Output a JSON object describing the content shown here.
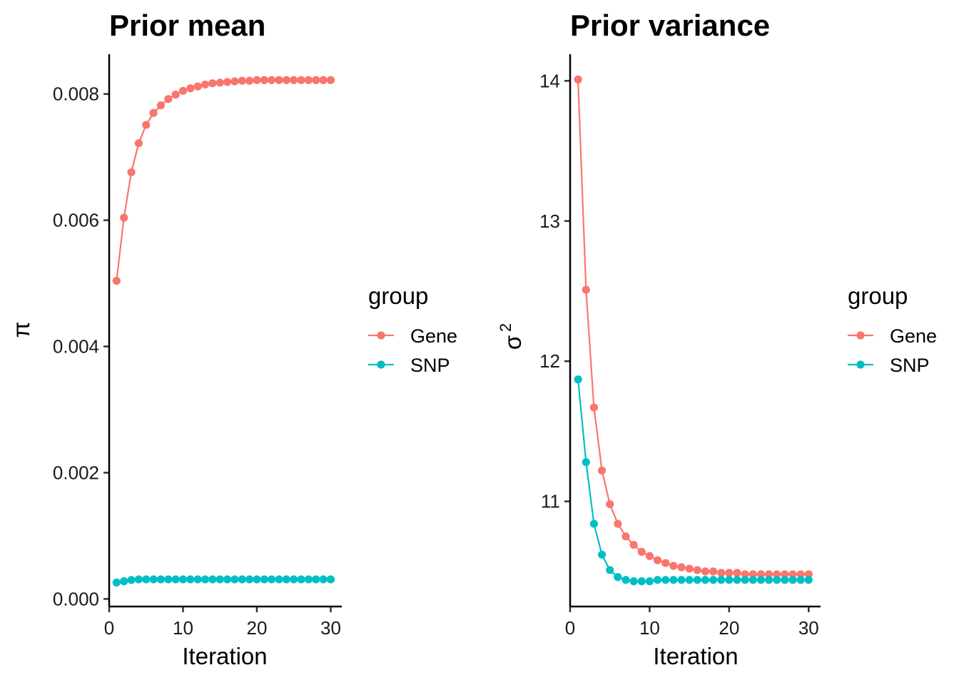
{
  "chart_data": [
    {
      "type": "line",
      "title": "Prior mean",
      "xlabel": "Iteration",
      "ylabel": "π",
      "xlim": [
        0,
        31.5
      ],
      "ylim": [
        -0.00012,
        0.00863
      ],
      "x_ticks": [
        0,
        10,
        20,
        30
      ],
      "x_tick_labels": [
        "0",
        "10",
        "20",
        "30"
      ],
      "y_ticks": [
        0.0,
        0.002,
        0.004,
        0.006,
        0.008
      ],
      "y_tick_labels": [
        "0.000",
        "0.002",
        "0.004",
        "0.006",
        "0.008"
      ],
      "grid": false,
      "legend": {
        "title": "group",
        "position": "right"
      },
      "series": [
        {
          "name": "Gene",
          "color": "#F8766D",
          "x": [
            1,
            2,
            3,
            4,
            5,
            6,
            7,
            8,
            9,
            10,
            11,
            12,
            13,
            14,
            15,
            16,
            17,
            18,
            19,
            20,
            21,
            22,
            23,
            24,
            25,
            26,
            27,
            28,
            29,
            30
          ],
          "y": [
            0.00504,
            0.00604,
            0.00676,
            0.00722,
            0.00751,
            0.0077,
            0.00782,
            0.00792,
            0.00799,
            0.00805,
            0.00809,
            0.00812,
            0.00815,
            0.00817,
            0.00818,
            0.00819,
            0.0082,
            0.00821,
            0.00821,
            0.00822,
            0.00822,
            0.00822,
            0.00822,
            0.00822,
            0.00822,
            0.00822,
            0.00822,
            0.00822,
            0.00822,
            0.00822
          ]
        },
        {
          "name": "SNP",
          "color": "#00BFC4",
          "x": [
            1,
            2,
            3,
            4,
            5,
            6,
            7,
            8,
            9,
            10,
            11,
            12,
            13,
            14,
            15,
            16,
            17,
            18,
            19,
            20,
            21,
            22,
            23,
            24,
            25,
            26,
            27,
            28,
            29,
            30
          ],
          "y": [
            0.00026,
            0.00028,
            0.0003,
            0.00031,
            0.00031,
            0.00031,
            0.00031,
            0.00031,
            0.00031,
            0.00031,
            0.00031,
            0.00031,
            0.00031,
            0.00031,
            0.00031,
            0.00031,
            0.00031,
            0.00031,
            0.00031,
            0.00031,
            0.00031,
            0.00031,
            0.00031,
            0.00031,
            0.00031,
            0.00031,
            0.00031,
            0.00031,
            0.00031,
            0.00031
          ]
        }
      ]
    },
    {
      "type": "line",
      "title": "Prior variance",
      "xlabel": "Iteration",
      "ylabel": "σ",
      "ylabel_superscript": "2",
      "xlim": [
        0,
        31.5
      ],
      "ylim": [
        10.25,
        14.19
      ],
      "x_ticks": [
        0,
        10,
        20,
        30
      ],
      "x_tick_labels": [
        "0",
        "10",
        "20",
        "30"
      ],
      "y_ticks": [
        11,
        12,
        13,
        14
      ],
      "y_tick_labels": [
        "11",
        "12",
        "13",
        "14"
      ],
      "grid": false,
      "legend": {
        "title": "group",
        "position": "right"
      },
      "series": [
        {
          "name": "Gene",
          "color": "#F8766D",
          "x": [
            1,
            2,
            3,
            4,
            5,
            6,
            7,
            8,
            9,
            10,
            11,
            12,
            13,
            14,
            15,
            16,
            17,
            18,
            19,
            20,
            21,
            22,
            23,
            24,
            25,
            26,
            27,
            28,
            29,
            30
          ],
          "y": [
            14.01,
            12.51,
            11.67,
            11.22,
            10.98,
            10.84,
            10.75,
            10.69,
            10.64,
            10.61,
            10.58,
            10.56,
            10.54,
            10.53,
            10.52,
            10.51,
            10.5,
            10.5,
            10.49,
            10.49,
            10.49,
            10.48,
            10.48,
            10.48,
            10.48,
            10.48,
            10.48,
            10.48,
            10.48,
            10.48
          ]
        },
        {
          "name": "SNP",
          "color": "#00BFC4",
          "x": [
            1,
            2,
            3,
            4,
            5,
            6,
            7,
            8,
            9,
            10,
            11,
            12,
            13,
            14,
            15,
            16,
            17,
            18,
            19,
            20,
            21,
            22,
            23,
            24,
            25,
            26,
            27,
            28,
            29,
            30
          ],
          "y": [
            11.87,
            11.28,
            10.84,
            10.62,
            10.51,
            10.46,
            10.44,
            10.43,
            10.43,
            10.43,
            10.44,
            10.44,
            10.44,
            10.44,
            10.44,
            10.44,
            10.44,
            10.44,
            10.44,
            10.44,
            10.44,
            10.44,
            10.44,
            10.44,
            10.44,
            10.44,
            10.44,
            10.44,
            10.44,
            10.44
          ]
        }
      ]
    }
  ]
}
